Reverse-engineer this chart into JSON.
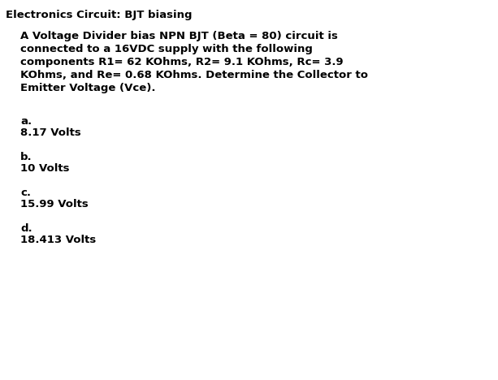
{
  "title": "Electronics Circuit: BJT biasing",
  "title_fontsize": 9.5,
  "body_text": "A Voltage Divider bias NPN BJT (Beta = 80) circuit is\nconnected to a 16VDC supply with the following\ncomponents R1= 62 KOhms, R2= 9.1 KOhms, Rc= 3.9\nKOhms, and Re= 0.68 KOhms. Determine the Collector to\nEmitter Voltage (Vce).",
  "body_fontsize": 9.5,
  "options": [
    {
      "label": "a.",
      "value": "8.17 Volts"
    },
    {
      "label": "b.",
      "value": "10 Volts"
    },
    {
      "label": "c.",
      "value": "15.99 Volts"
    },
    {
      "label": "d.",
      "value": "18.413 Volts"
    }
  ],
  "option_fontsize": 9.5,
  "background_color": "#ffffff",
  "text_color": "#000000",
  "fig_width": 6.13,
  "fig_height": 4.68,
  "dpi": 100
}
